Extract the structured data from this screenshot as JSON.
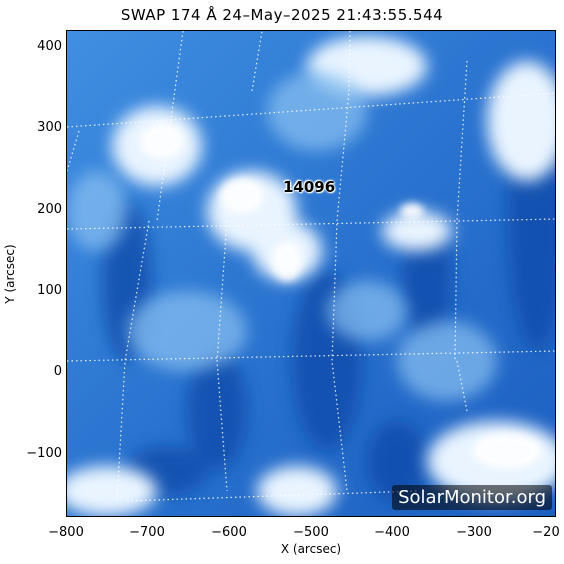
{
  "title": "SWAP 174 Å 24–May–2025 21:43:55.544",
  "axes": {
    "xlabel": "X (arcsec)",
    "ylabel": "Y (arcsec)",
    "xticks": [
      "−800",
      "−700",
      "−600",
      "−500",
      "−400",
      "−300",
      "−20"
    ],
    "yticks": [
      "400",
      "300",
      "200",
      "100",
      "0",
      "−100"
    ]
  },
  "active_region": "14096",
  "watermark": "SolarMonitor.org",
  "colors": {
    "dark_blue": "#0a3a9a",
    "mid_blue": "#2b7ad6",
    "light": "#e9f4ff"
  }
}
